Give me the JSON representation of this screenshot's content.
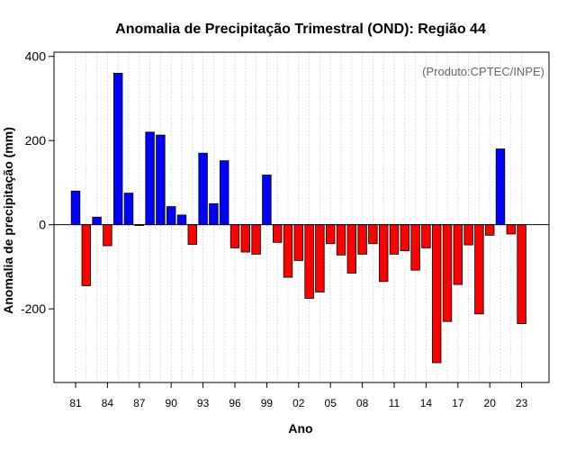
{
  "chart_data": {
    "type": "bar",
    "title": "Anomalia de Precipitação Trimestral (OND): Região 44",
    "xlabel": "Ano",
    "ylabel": "Anomalia de precipitação (mm)",
    "source_note": "(Produto:CPTEC/INPE)",
    "ylim": [
      -375,
      410
    ],
    "yticks": [
      -200,
      0,
      200,
      400
    ],
    "xtick_labels": [
      "81",
      "84",
      "87",
      "90",
      "93",
      "96",
      "99",
      "02",
      "05",
      "08",
      "11",
      "14",
      "17",
      "20",
      "23"
    ],
    "xtick_years": [
      1981,
      1984,
      1987,
      1990,
      1993,
      1996,
      1999,
      2002,
      2005,
      2008,
      2011,
      2014,
      2017,
      2020,
      2023
    ],
    "grid": "vertical dotted",
    "positive_color": "#0000ff",
    "negative_color": "#ff0000",
    "years": [
      1981,
      1982,
      1983,
      1984,
      1985,
      1986,
      1987,
      1988,
      1989,
      1990,
      1991,
      1992,
      1993,
      1994,
      1995,
      1996,
      1997,
      1998,
      1999,
      2000,
      2001,
      2002,
      2003,
      2004,
      2005,
      2006,
      2007,
      2008,
      2009,
      2010,
      2011,
      2012,
      2013,
      2014,
      2015,
      2016,
      2017,
      2018,
      2019,
      2020,
      2021,
      2022,
      2023
    ],
    "values": [
      80,
      -145,
      18,
      -50,
      360,
      75,
      -2,
      220,
      213,
      43,
      23,
      -47,
      170,
      50,
      152,
      -55,
      -65,
      -70,
      118,
      -42,
      -125,
      -85,
      -175,
      -160,
      -45,
      -72,
      -115,
      -70,
      -45,
      -135,
      -70,
      -62,
      -108,
      -55,
      -328,
      -230,
      -142,
      -48,
      -212,
      -25,
      180,
      -22,
      -235
    ]
  }
}
